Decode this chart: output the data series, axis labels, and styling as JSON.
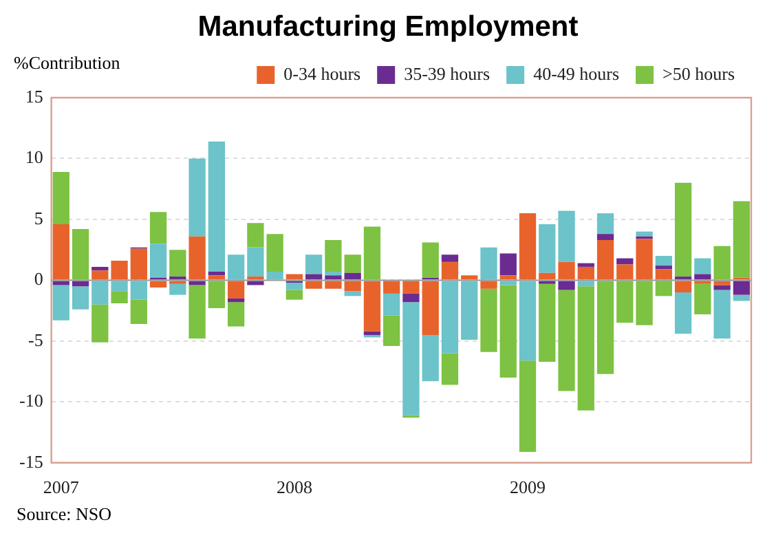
{
  "chart_data": {
    "type": "bar",
    "title": "Manufacturing Employment",
    "ylabel": "%Contribution",
    "stacked": true,
    "legend": "top",
    "grid": "y",
    "categories": [
      "2007",
      null,
      null,
      null,
      null,
      null,
      null,
      null,
      null,
      null,
      null,
      null,
      "2008",
      null,
      null,
      null,
      null,
      null,
      null,
      null,
      null,
      null,
      null,
      null,
      "2009",
      null,
      null,
      null,
      null,
      null,
      null,
      null,
      null,
      null,
      null,
      null
    ],
    "ylim": [
      -15,
      15
    ],
    "yticks": [
      -15,
      -10,
      -5,
      0,
      5,
      10,
      15
    ],
    "series": [
      {
        "name": "0-34 hours",
        "color": "#e8632b",
        "values": [
          4.6,
          0,
          0.8,
          1.6,
          2.6,
          -0.6,
          -0.3,
          3.6,
          0.4,
          -1.5,
          0.3,
          0,
          0.5,
          -0.7,
          -0.7,
          -0.9,
          -4.2,
          -1.1,
          -1.1,
          -4.5,
          1.5,
          0.4,
          -0.7,
          0.4,
          5.5,
          0.6,
          1.5,
          1.1,
          3.3,
          1.3,
          3.4,
          0.9,
          -1,
          -0.3,
          -0.4,
          0.2
        ]
      },
      {
        "name": "35-39 hours",
        "color": "#6a2c91",
        "values": [
          -0.4,
          -0.5,
          0.3,
          0,
          0.1,
          0.2,
          0.3,
          -0.4,
          0.3,
          -0.3,
          -0.4,
          0,
          -0.2,
          0.5,
          0.4,
          0.6,
          -0.3,
          0,
          -0.7,
          0.2,
          0.6,
          0,
          0,
          1.8,
          0,
          -0.3,
          -0.8,
          0.3,
          0.5,
          0.5,
          0.2,
          0.3,
          0.3,
          0.5,
          -0.4,
          -1.2
        ]
      },
      {
        "name": "40-49 hours",
        "color": "#6cc3c9",
        "values": [
          -2.9,
          -1.9,
          -2,
          -0.9,
          -1.6,
          2.8,
          -0.9,
          6.4,
          10.7,
          2.1,
          2.4,
          0.7,
          -0.6,
          1.6,
          0.3,
          -0.4,
          -0.2,
          -1.8,
          -9.3,
          -3.8,
          -6,
          -4.9,
          2.7,
          -0.4,
          -6.6,
          4,
          4.2,
          -0.5,
          1.7,
          0,
          0.4,
          0.8,
          -3.4,
          1.3,
          -4,
          -0.5
        ]
      },
      {
        "name": ">50 hours",
        "color": "#7dc242",
        "values": [
          4.3,
          4.2,
          -3.1,
          -1,
          -2,
          2.6,
          2.2,
          -4.4,
          -2.3,
          -2,
          2,
          3.1,
          -0.8,
          0,
          2.6,
          1.5,
          4.4,
          -2.5,
          -0.2,
          2.9,
          -2.6,
          0,
          -5.2,
          -7.6,
          -7.5,
          -6.4,
          -8.3,
          -10.2,
          -7.7,
          -3.5,
          -3.7,
          -1.3,
          7.7,
          -2.5,
          2.8,
          6.3
        ]
      }
    ],
    "annotations": [
      "Source: NSO"
    ]
  }
}
